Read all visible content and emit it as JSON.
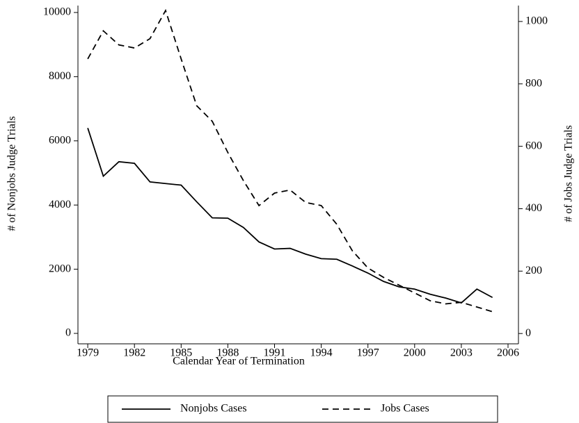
{
  "chart_data": {
    "type": "line",
    "xlabel": "Calendar Year of Termination",
    "ylabel": "# of Nonjobs Judge Trials",
    "y2label": "# of Jobs Judge Trials",
    "x": [
      1979,
      1980,
      1981,
      1982,
      1983,
      1984,
      1985,
      1986,
      1987,
      1988,
      1989,
      1990,
      1991,
      1992,
      1993,
      1994,
      1995,
      1996,
      1997,
      1998,
      1999,
      2000,
      2001,
      2002,
      2003,
      2004,
      2005
    ],
    "series": [
      {
        "name": "Nonjobs Cases",
        "color": "#000000",
        "dash": "solid",
        "values": [
          6400,
          4900,
          5350,
          5300,
          4720,
          4670,
          4620,
          4100,
          3600,
          3590,
          3300,
          2850,
          2630,
          2650,
          2470,
          2330,
          2310,
          2100,
          1880,
          1620,
          1450,
          1380,
          1220,
          1100,
          950,
          1380,
          1120
        ]
      },
      {
        "name": "Jobs Cases",
        "color": "#000000",
        "dash": "dashed",
        "axis": "y2",
        "values": [
          880,
          970,
          925,
          915,
          945,
          1035,
          880,
          730,
          680,
          580,
          490,
          410,
          450,
          460,
          420,
          410,
          350,
          265,
          210,
          180,
          155,
          130,
          105,
          95,
          100,
          85,
          70
        ]
      }
    ],
    "xlim": [
      1978.37,
      2006.67
    ],
    "xticks": [
      1979,
      1982,
      1985,
      1988,
      1991,
      1994,
      1997,
      2000,
      2003,
      2006
    ],
    "ylim": [
      -325,
      10216
    ],
    "yticks": [
      0,
      2000,
      4000,
      6000,
      8000,
      10000
    ],
    "y2lim": [
      -33,
      1051
    ],
    "y2ticks": [
      0,
      200,
      400,
      600,
      800,
      1000
    ],
    "legend": "bottom"
  }
}
